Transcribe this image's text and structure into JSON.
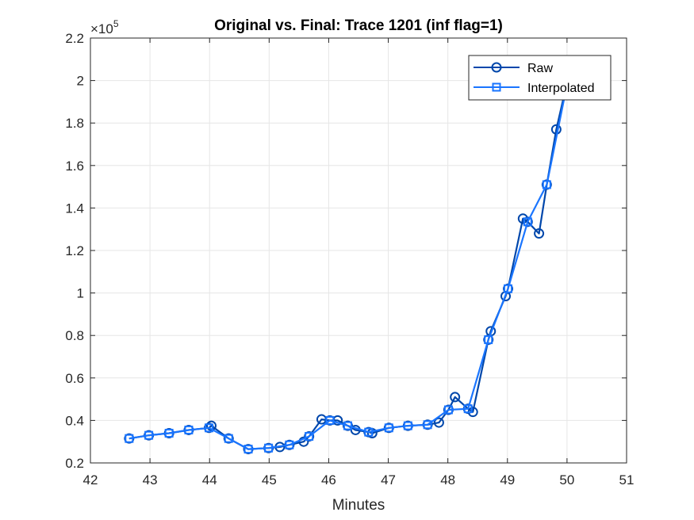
{
  "chart_data": {
    "type": "line",
    "title": "Original vs. Final: Trace 1201 (inf flag=1)",
    "xlabel": "Minutes",
    "ylabel": "",
    "xlim": [
      42,
      51
    ],
    "ylim": [
      20000,
      220000
    ],
    "xticks": [
      42,
      43,
      44,
      45,
      46,
      47,
      48,
      49,
      50,
      51
    ],
    "yticks": [
      20000,
      40000,
      60000,
      80000,
      100000,
      120000,
      140000,
      160000,
      180000,
      200000,
      220000
    ],
    "ytick_labels": [
      "0.2",
      "0.4",
      "0.6",
      "0.8",
      "1",
      "1.2",
      "1.4",
      "1.6",
      "1.8",
      "2",
      "2.2"
    ],
    "y_exponent_base": "×10",
    "y_exponent_power": "5",
    "grid": true,
    "legend_location": "top-right",
    "colors": {
      "raw": "#0047ab",
      "interpolated": "#1a75ff",
      "grid": "#e6e6e6",
      "axis": "#262626"
    },
    "series": [
      {
        "name": "Raw",
        "marker": "circle",
        "x": [
          42.65,
          42.98,
          43.32,
          43.65,
          43.99,
          44.03,
          44.32,
          44.65,
          44.99,
          45.18,
          45.34,
          45.58,
          45.67,
          45.88,
          46.02,
          46.15,
          46.32,
          46.45,
          46.67,
          46.73,
          47.01,
          47.33,
          47.66,
          47.85,
          48.01,
          48.12,
          48.34,
          48.42,
          48.68,
          48.72,
          48.97,
          49.01,
          49.26,
          49.34,
          49.53,
          49.66,
          49.82,
          50.05
        ],
        "y": [
          31500,
          33000,
          34000,
          35500,
          36500,
          37500,
          31500,
          26500,
          27000,
          27500,
          28500,
          30000,
          32500,
          40500,
          40000,
          40000,
          37500,
          35500,
          34500,
          34000,
          36500,
          37500,
          38000,
          39000,
          45000,
          51000,
          45500,
          44000,
          78000,
          82000,
          98500,
          102000,
          135000,
          133500,
          128000,
          151000,
          177000,
          205000
        ]
      },
      {
        "name": "Interpolated",
        "marker": "square",
        "x": [
          42.65,
          42.98,
          43.32,
          43.65,
          43.99,
          44.32,
          44.65,
          44.99,
          45.34,
          45.67,
          46.02,
          46.32,
          46.67,
          47.01,
          47.33,
          47.66,
          48.01,
          48.34,
          48.68,
          49.01,
          49.34,
          49.66,
          50.05
        ],
        "y": [
          31500,
          33000,
          34000,
          35500,
          36500,
          31500,
          26500,
          27000,
          28500,
          32500,
          40000,
          37500,
          34500,
          36500,
          37500,
          38000,
          45000,
          45500,
          78000,
          102000,
          133500,
          151000,
          205000
        ]
      }
    ]
  }
}
